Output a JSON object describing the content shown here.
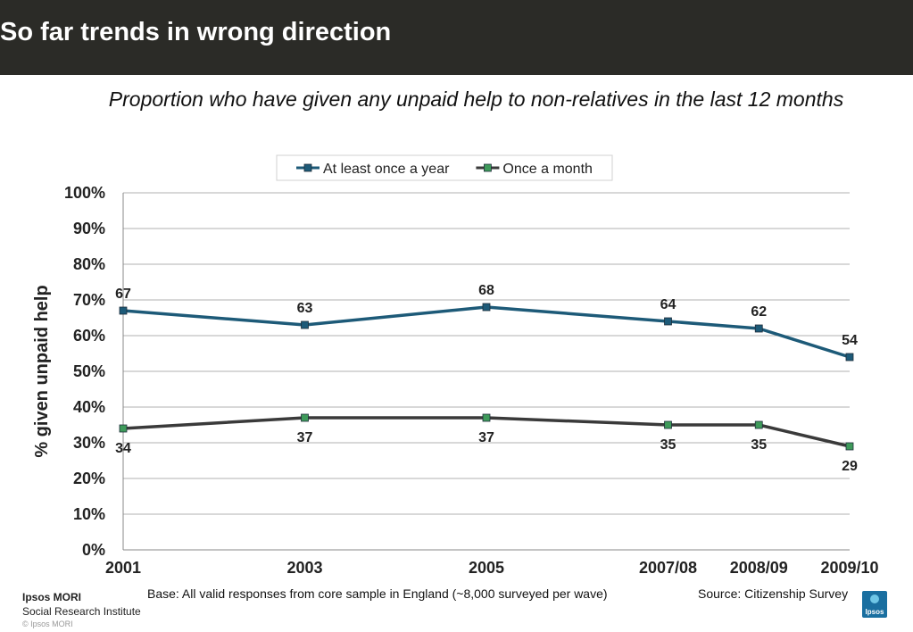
{
  "page": {
    "title": "So far trends in wrong direction",
    "subtitle": "Proportion who have given any unpaid help to non-relatives in the last 12 months"
  },
  "footer": {
    "base": "Base: All valid responses from core sample in England (~8,000 surveyed per wave)",
    "source": "Source: Citizenship Survey",
    "brand_name": "Ipsos MORI",
    "brand_sub": "Social Research Institute",
    "copyright": "© Ipsos MORI",
    "logo_text": "Ipsos"
  },
  "chart_data": {
    "type": "line",
    "x": [
      "2001",
      "2003",
      "2005",
      "2007/08",
      "2008/09",
      "2009/10"
    ],
    "x_positions": [
      2001,
      2003,
      2005,
      2007,
      2008,
      2009
    ],
    "series": [
      {
        "name": "At least once a year",
        "values": [
          67,
          63,
          68,
          64,
          62,
          54
        ],
        "color": "#1d5a78"
      },
      {
        "name": "Once a month",
        "values": [
          34,
          37,
          37,
          35,
          35,
          29
        ],
        "color": "#3a3a3a",
        "marker_color": "#3e9a5a"
      }
    ],
    "ylabel": "% given unpaid help",
    "xlabel": "",
    "ylim": [
      0,
      100
    ],
    "yticks": [
      "0%",
      "10%",
      "20%",
      "30%",
      "40%",
      "50%",
      "60%",
      "70%",
      "80%",
      "90%",
      "100%"
    ],
    "grid": true,
    "legend": "top-center"
  }
}
